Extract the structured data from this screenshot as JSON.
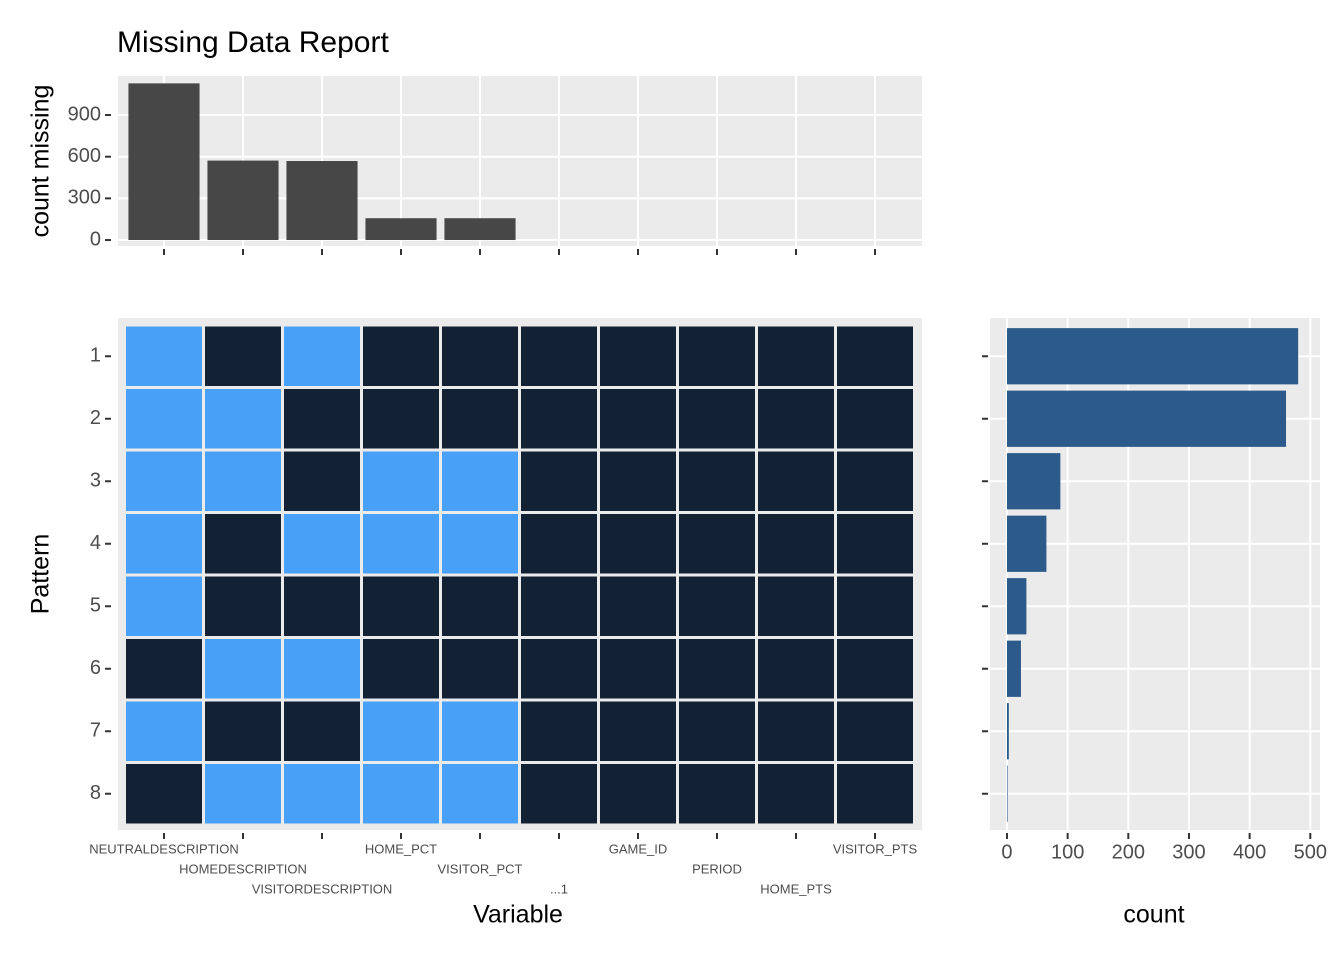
{
  "chart_data": [
    {
      "type": "bar",
      "title": "Missing Data Report",
      "ylabel": "count missing",
      "values": [
        1128,
        572,
        569,
        157,
        157,
        0,
        0,
        0,
        0,
        0
      ],
      "color": "#474747",
      "ylim": [
        -43,
        1181
      ],
      "yticks": [
        0,
        300,
        600,
        900
      ],
      "grid": true
    },
    {
      "type": "heatmap",
      "xlabel": "Variable",
      "ylabel": "Pattern",
      "x": [
        "NEUTRALDESCRIPTION",
        "HOMEDESCRIPTION",
        "VISITORDESCRIPTION",
        "HOME_PCT",
        "VISITOR_PCT",
        "...1",
        "GAME_ID",
        "PERIOD",
        "HOME_PTS",
        "VISITOR_PTS"
      ],
      "y": [
        "1",
        "2",
        "3",
        "4",
        "5",
        "6",
        "7",
        "8"
      ],
      "values": [
        [
          1,
          0,
          1,
          0,
          0,
          0,
          0,
          0,
          0,
          0
        ],
        [
          1,
          1,
          0,
          0,
          0,
          0,
          0,
          0,
          0,
          0
        ],
        [
          1,
          1,
          0,
          1,
          1,
          0,
          0,
          0,
          0,
          0
        ],
        [
          1,
          0,
          1,
          1,
          1,
          0,
          0,
          0,
          0,
          0
        ],
        [
          1,
          0,
          0,
          0,
          0,
          0,
          0,
          0,
          0,
          0
        ],
        [
          0,
          1,
          1,
          0,
          0,
          0,
          0,
          0,
          0,
          0
        ],
        [
          1,
          0,
          0,
          1,
          1,
          0,
          0,
          0,
          0,
          0
        ],
        [
          0,
          1,
          1,
          1,
          1,
          0,
          0,
          0,
          0,
          0
        ]
      ],
      "colors": [
        "#122133",
        "#48a1f7"
      ]
    },
    {
      "type": "barh",
      "xlabel": "count",
      "values": [
        480,
        460,
        88,
        65,
        32,
        23,
        3,
        1
      ],
      "color": "#2b5a8b",
      "xlim": [
        -28,
        516
      ],
      "xticks": [
        0,
        100,
        200,
        300,
        400,
        500
      ],
      "grid": true
    }
  ]
}
